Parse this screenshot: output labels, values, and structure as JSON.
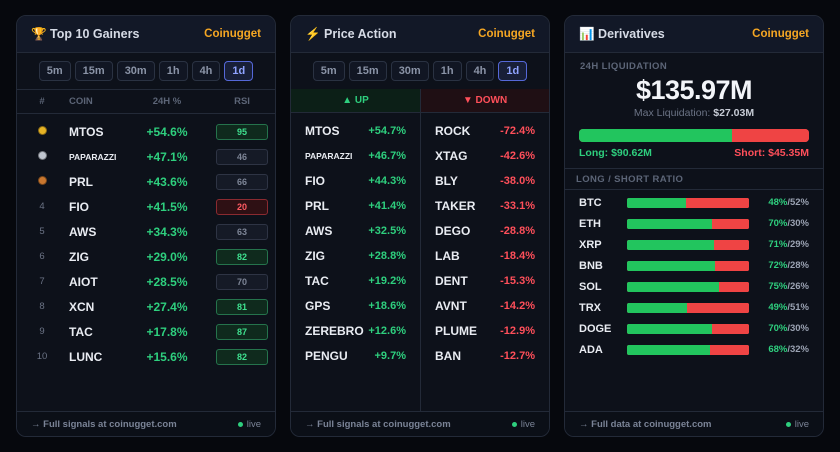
{
  "colors": {
    "accent": "#f5a623",
    "up": "#2ecf7e",
    "down": "#ff4f5a",
    "active_tf": "#8fa3ff"
  },
  "gainers": {
    "icon": "trophy-icon",
    "title": "🏆 Top 10 Gainers",
    "brand": "Coinugget",
    "timeframes": [
      "5m",
      "15m",
      "30m",
      "1h",
      "4h",
      "1d"
    ],
    "active_timeframe": "1d",
    "headers": {
      "rank": "#",
      "coin": "COIN",
      "change": "24H %",
      "rsi": "RSI"
    },
    "rows": [
      {
        "rank": "1",
        "medal": "gold-medal-icon",
        "coin": "MTOS",
        "change": "+54.6%",
        "rsi": "95",
        "rsi_state": "hi"
      },
      {
        "rank": "2",
        "medal": "silver-medal-icon",
        "coin": "PAPARAZZI",
        "change": "+47.1%",
        "rsi": "46",
        "rsi_state": "mid"
      },
      {
        "rank": "3",
        "medal": "bronze-medal-icon",
        "coin": "PRL",
        "change": "+43.6%",
        "rsi": "66",
        "rsi_state": "mid"
      },
      {
        "rank": "4",
        "medal": "",
        "coin": "FIO",
        "change": "+41.5%",
        "rsi": "20",
        "rsi_state": "lo"
      },
      {
        "rank": "5",
        "medal": "",
        "coin": "AWS",
        "change": "+34.3%",
        "rsi": "63",
        "rsi_state": "mid"
      },
      {
        "rank": "6",
        "medal": "",
        "coin": "ZIG",
        "change": "+29.0%",
        "rsi": "82",
        "rsi_state": "hi"
      },
      {
        "rank": "7",
        "medal": "",
        "coin": "AIOT",
        "change": "+28.5%",
        "rsi": "70",
        "rsi_state": "mid"
      },
      {
        "rank": "8",
        "medal": "",
        "coin": "XCN",
        "change": "+27.4%",
        "rsi": "81",
        "rsi_state": "hi"
      },
      {
        "rank": "9",
        "medal": "",
        "coin": "TAC",
        "change": "+17.8%",
        "rsi": "87",
        "rsi_state": "hi"
      },
      {
        "rank": "10",
        "medal": "",
        "coin": "LUNC",
        "change": "+15.6%",
        "rsi": "82",
        "rsi_state": "hi"
      }
    ],
    "footer_link": "→ Full signals at coinugget.com",
    "live": "live"
  },
  "price_action": {
    "icon": "lightning-icon",
    "title": "⚡ Price Action",
    "brand": "Coinugget",
    "timeframes": [
      "5m",
      "15m",
      "30m",
      "1h",
      "4h",
      "1d"
    ],
    "active_timeframe": "1d",
    "up_label": "▲ UP",
    "down_label": "▼ DOWN",
    "up": [
      {
        "coin": "MTOS",
        "change": "+54.7%"
      },
      {
        "coin": "PAPARAZZI",
        "change": "+46.7%"
      },
      {
        "coin": "FIO",
        "change": "+44.3%"
      },
      {
        "coin": "PRL",
        "change": "+41.4%"
      },
      {
        "coin": "AWS",
        "change": "+32.5%"
      },
      {
        "coin": "ZIG",
        "change": "+28.8%"
      },
      {
        "coin": "TAC",
        "change": "+19.2%"
      },
      {
        "coin": "GPS",
        "change": "+18.6%"
      },
      {
        "coin": "ZEREBRO",
        "change": "+12.6%"
      },
      {
        "coin": "PENGU",
        "change": "+9.7%"
      }
    ],
    "down": [
      {
        "coin": "ROCK",
        "change": "-72.4%"
      },
      {
        "coin": "XTAG",
        "change": "-42.6%"
      },
      {
        "coin": "BLY",
        "change": "-38.0%"
      },
      {
        "coin": "TAKER",
        "change": "-33.1%"
      },
      {
        "coin": "DEGO",
        "change": "-28.8%"
      },
      {
        "coin": "LAB",
        "change": "-18.4%"
      },
      {
        "coin": "DENT",
        "change": "-15.3%"
      },
      {
        "coin": "AVNT",
        "change": "-14.2%"
      },
      {
        "coin": "PLUME",
        "change": "-12.9%"
      },
      {
        "coin": "BAN",
        "change": "-12.7%"
      }
    ],
    "footer_link": "→ Full signals at coinugget.com",
    "live": "live"
  },
  "derivatives": {
    "icon": "bar-chart-icon",
    "title": "📊 Derivatives",
    "brand": "Coinugget",
    "liq_label": "24H LIQUIDATION",
    "liq_value": "$135.97M",
    "liq_max_label": "Max Liquidation:",
    "liq_max_value": "$27.03M",
    "long_fraction": 0.667,
    "long_label": "Long: $90.62M",
    "short_label": "Short: $45.35M",
    "ratio_title": "LONG / SHORT RATIO",
    "ratios": [
      {
        "coin": "BTC",
        "long": 48,
        "long_text": "48%",
        "short_text": "/52%"
      },
      {
        "coin": "ETH",
        "long": 70,
        "long_text": "70%",
        "short_text": "/30%"
      },
      {
        "coin": "XRP",
        "long": 71,
        "long_text": "71%",
        "short_text": "/29%"
      },
      {
        "coin": "BNB",
        "long": 72,
        "long_text": "72%",
        "short_text": "/28%"
      },
      {
        "coin": "SOL",
        "long": 75,
        "long_text": "75%",
        "short_text": "/26%"
      },
      {
        "coin": "TRX",
        "long": 49,
        "long_text": "49%",
        "short_text": "/51%"
      },
      {
        "coin": "DOGE",
        "long": 70,
        "long_text": "70%",
        "short_text": "/30%"
      },
      {
        "coin": "ADA",
        "long": 68,
        "long_text": "68%",
        "short_text": "/32%"
      }
    ],
    "footer_link": "→ Full data at coinugget.com",
    "live": "live"
  }
}
